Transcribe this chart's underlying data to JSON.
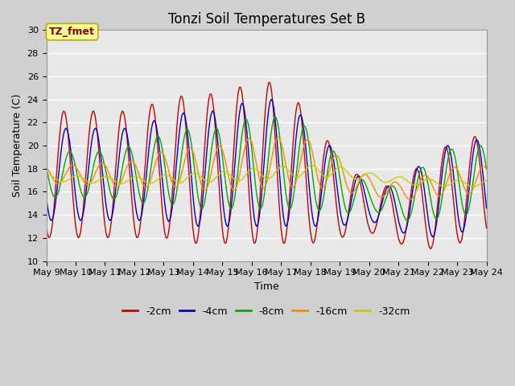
{
  "title": "Tonzi Soil Temperatures Set B",
  "xlabel": "Time",
  "ylabel": "Soil Temperature (C)",
  "annotation": "TZ_fmet",
  "ylim": [
    10,
    30
  ],
  "line_colors": {
    "-2cm": "#cc0000",
    "-4cm": "#0000cc",
    "-8cm": "#00aa00",
    "-16cm": "#ff8800",
    "-32cm": "#cccc00"
  },
  "legend_labels": [
    "-2cm",
    "-4cm",
    "-8cm",
    "-16cm",
    "-32cm"
  ],
  "fig_bg_color": "#d0d0d0",
  "plot_bg_color": "#e8e8e8",
  "grid_color": "#ffffff",
  "annotation_bg": "#ffff99",
  "annotation_border": "#bbaa00",
  "annotation_text_color": "#880000",
  "title_fontsize": 12,
  "axis_label_fontsize": 9,
  "tick_fontsize": 8
}
